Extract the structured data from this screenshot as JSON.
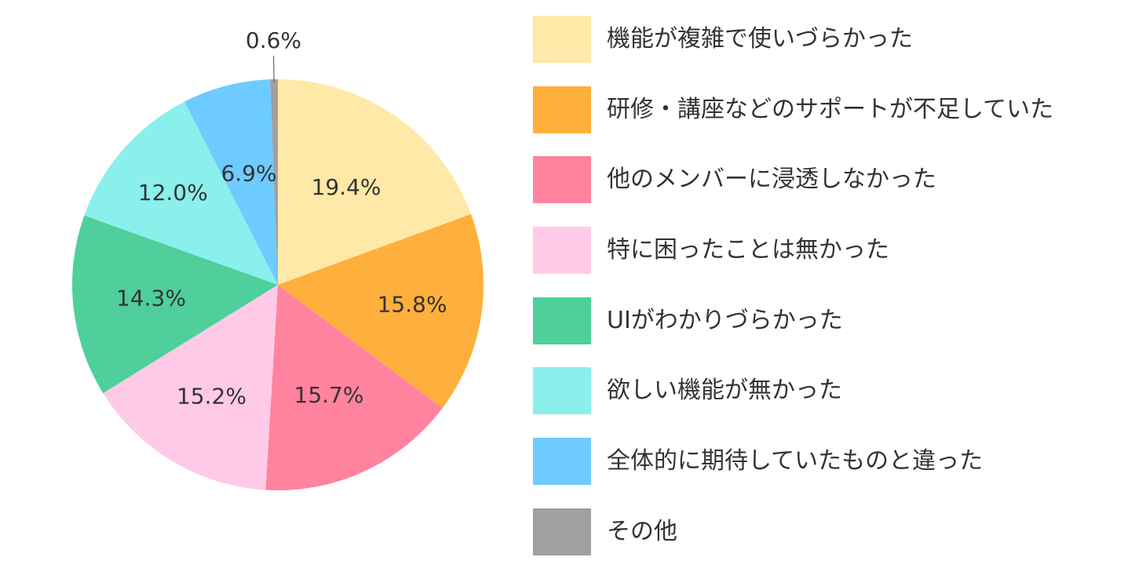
{
  "chart_data": {
    "type": "pie",
    "categories": [
      "機能が複雑で使いづらかった",
      "研修・講座などのサポートが不足していた",
      "他のメンバーに浸透しなかった",
      "特に困ったことは無かった",
      "UIがわかりづらかった",
      "欲しい機能が無かった",
      "全体的に期待していたものと違った",
      "その他"
    ],
    "values": [
      19.4,
      15.8,
      15.7,
      15.2,
      14.3,
      12.0,
      6.9,
      0.6
    ],
    "labels": [
      "19.4%",
      "15.8%",
      "15.7%",
      "15.2%",
      "14.3%",
      "12.0%",
      "6.9%",
      "0.6%"
    ],
    "colors": [
      "#FFE9A8",
      "#FFAF3B",
      "#FF839E",
      "#FFCAE7",
      "#4ECF9C",
      "#8BEFEB",
      "#6ECBFF",
      "#A0A0A0"
    ],
    "start": "12 o'clock",
    "direction": "clockwise",
    "legend_position": "right"
  }
}
